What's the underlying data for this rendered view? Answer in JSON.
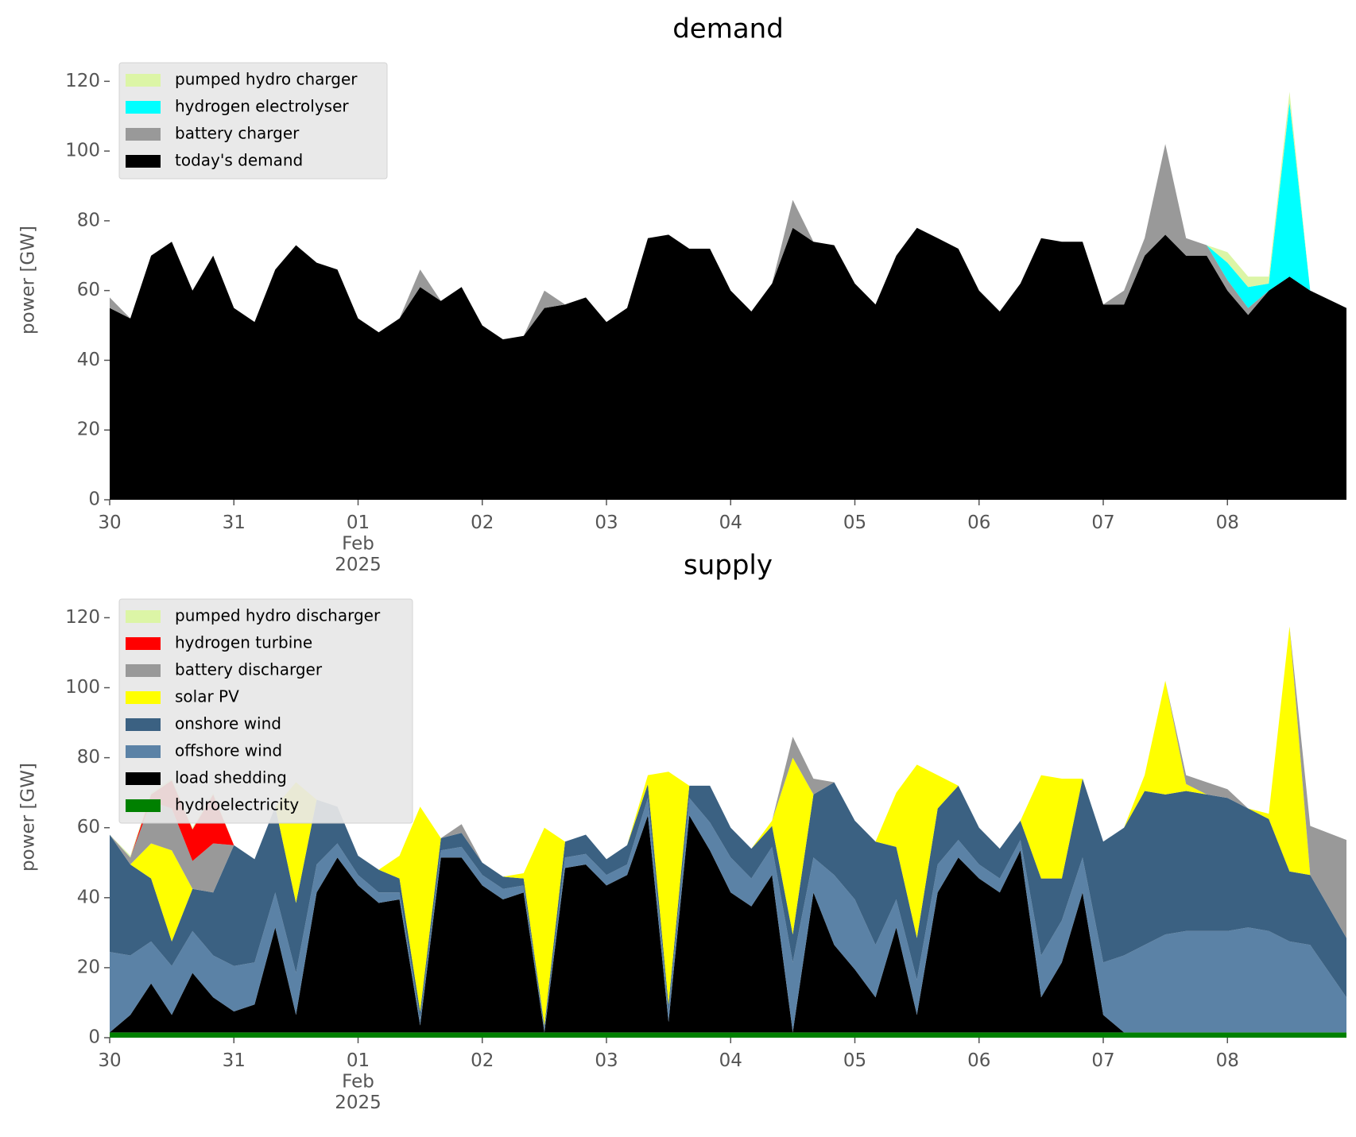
{
  "chart_data": [
    {
      "type": "area",
      "stacked": true,
      "title": "demand",
      "y_label": "power [GW]",
      "legend": "upper left",
      "x": [
        "2025-01-30T00:00",
        "2025-01-30T04:00",
        "2025-01-30T08:00",
        "2025-01-30T12:00",
        "2025-01-30T16:00",
        "2025-01-30T20:00",
        "2025-01-31T00:00",
        "2025-01-31T04:00",
        "2025-01-31T08:00",
        "2025-01-31T12:00",
        "2025-01-31T16:00",
        "2025-01-31T20:00",
        "2025-02-01T00:00",
        "2025-02-01T04:00",
        "2025-02-01T08:00",
        "2025-02-01T12:00",
        "2025-02-01T16:00",
        "2025-02-01T20:00",
        "2025-02-02T00:00",
        "2025-02-02T04:00",
        "2025-02-02T08:00",
        "2025-02-02T12:00",
        "2025-02-02T16:00",
        "2025-02-02T20:00",
        "2025-02-03T00:00",
        "2025-02-03T04:00",
        "2025-02-03T08:00",
        "2025-02-03T12:00",
        "2025-02-03T16:00",
        "2025-02-03T20:00",
        "2025-02-04T00:00",
        "2025-02-04T04:00",
        "2025-02-04T08:00",
        "2025-02-04T12:00",
        "2025-02-04T16:00",
        "2025-02-04T20:00",
        "2025-02-05T00:00",
        "2025-02-05T04:00",
        "2025-02-05T08:00",
        "2025-02-05T12:00",
        "2025-02-05T16:00",
        "2025-02-05T20:00",
        "2025-02-06T00:00",
        "2025-02-06T04:00",
        "2025-02-06T08:00",
        "2025-02-06T12:00",
        "2025-02-06T16:00",
        "2025-02-06T20:00",
        "2025-02-07T00:00",
        "2025-02-07T04:00",
        "2025-02-07T08:00",
        "2025-02-07T12:00",
        "2025-02-07T16:00",
        "2025-02-07T20:00",
        "2025-02-08T00:00",
        "2025-02-08T04:00",
        "2025-02-08T08:00",
        "2025-02-08T12:00",
        "2025-02-08T16:00",
        "2025-02-08T23:00"
      ],
      "series": [
        {
          "name": "today's demand",
          "color": "#000000",
          "values": [
            55,
            52,
            70,
            74,
            60,
            70,
            55,
            51,
            66,
            73,
            68,
            66,
            52,
            48,
            52,
            61,
            57,
            61,
            50,
            46,
            47,
            55,
            56,
            58,
            51,
            55,
            75,
            76,
            72,
            72,
            60,
            54,
            62,
            78,
            74,
            73,
            62,
            56,
            70,
            78,
            75,
            72,
            60,
            54,
            62,
            75,
            74,
            74,
            56,
            56,
            70,
            76,
            70,
            70,
            60,
            53,
            60,
            64,
            60,
            55
          ]
        },
        {
          "name": "battery charger",
          "color": "#999999",
          "values": [
            3,
            0,
            0,
            0,
            0,
            0,
            0,
            0,
            0,
            0,
            0,
            0,
            0,
            0,
            0,
            5,
            0,
            0,
            0,
            0,
            0,
            5,
            0,
            0,
            0,
            0,
            0,
            0,
            0,
            0,
            0,
            0,
            0,
            8,
            0,
            0,
            0,
            0,
            0,
            0,
            0,
            0,
            0,
            0,
            0,
            0,
            0,
            0,
            0,
            4,
            5,
            26,
            5,
            3,
            3,
            2,
            0,
            0,
            0,
            0
          ]
        },
        {
          "name": "hydrogen electrolyser",
          "color": "#00ffff",
          "values": [
            0,
            0,
            0,
            0,
            0,
            0,
            0,
            0,
            0,
            0,
            0,
            0,
            0,
            0,
            0,
            0,
            0,
            0,
            0,
            0,
            0,
            0,
            0,
            0,
            0,
            0,
            0,
            0,
            0,
            0,
            0,
            0,
            0,
            0,
            0,
            0,
            0,
            0,
            0,
            0,
            0,
            0,
            0,
            0,
            0,
            0,
            0,
            0,
            0,
            0,
            0,
            0,
            0,
            0,
            5,
            6,
            2,
            50,
            0,
            0
          ]
        },
        {
          "name": "pumped hydro charger",
          "color": "#dcf5a6",
          "values": [
            0,
            0,
            0,
            0,
            0,
            0,
            0,
            0,
            0,
            0,
            0,
            0,
            0,
            0,
            0,
            0,
            0,
            0,
            0,
            0,
            0,
            0,
            0,
            0,
            0,
            0,
            0,
            0,
            0,
            0,
            0,
            0,
            0,
            0,
            0,
            0,
            0,
            0,
            0,
            0,
            0,
            0,
            0,
            0,
            0,
            0,
            0,
            0,
            0,
            0,
            0,
            0,
            0,
            0,
            3,
            3,
            2,
            3,
            0,
            0
          ]
        }
      ],
      "xlim": [
        "2025-01-30T00:00",
        "2025-02-08T23:00"
      ],
      "xticks": [
        {
          "value": "2025-01-30T00:00",
          "label": "30"
        },
        {
          "value": "2025-01-31T00:00",
          "label": "31"
        },
        {
          "value": "2025-02-01T00:00",
          "label": "01\nFeb\n2025"
        },
        {
          "value": "2025-02-02T00:00",
          "label": "02"
        },
        {
          "value": "2025-02-03T00:00",
          "label": "03"
        },
        {
          "value": "2025-02-04T00:00",
          "label": "04"
        },
        {
          "value": "2025-02-05T00:00",
          "label": "05"
        },
        {
          "value": "2025-02-06T00:00",
          "label": "06"
        },
        {
          "value": "2025-02-07T00:00",
          "label": "07"
        },
        {
          "value": "2025-02-08T00:00",
          "label": "08"
        }
      ],
      "ylim": [
        0,
        126
      ],
      "yticks": [
        0,
        20,
        40,
        60,
        80,
        100,
        120
      ],
      "grid": false
    },
    {
      "type": "area",
      "stacked": true,
      "title": "supply",
      "y_label": "power [GW]",
      "legend": "upper left",
      "x": [
        "2025-01-30T00:00",
        "2025-01-30T04:00",
        "2025-01-30T08:00",
        "2025-01-30T12:00",
        "2025-01-30T16:00",
        "2025-01-30T20:00",
        "2025-01-31T00:00",
        "2025-01-31T04:00",
        "2025-01-31T08:00",
        "2025-01-31T12:00",
        "2025-01-31T16:00",
        "2025-01-31T20:00",
        "2025-02-01T00:00",
        "2025-02-01T04:00",
        "2025-02-01T08:00",
        "2025-02-01T12:00",
        "2025-02-01T16:00",
        "2025-02-01T20:00",
        "2025-02-02T00:00",
        "2025-02-02T04:00",
        "2025-02-02T08:00",
        "2025-02-02T12:00",
        "2025-02-02T16:00",
        "2025-02-02T20:00",
        "2025-02-03T00:00",
        "2025-02-03T04:00",
        "2025-02-03T08:00",
        "2025-02-03T12:00",
        "2025-02-03T16:00",
        "2025-02-03T20:00",
        "2025-02-04T00:00",
        "2025-02-04T04:00",
        "2025-02-04T08:00",
        "2025-02-04T12:00",
        "2025-02-04T16:00",
        "2025-02-04T20:00",
        "2025-02-05T00:00",
        "2025-02-05T04:00",
        "2025-02-05T08:00",
        "2025-02-05T12:00",
        "2025-02-05T16:00",
        "2025-02-05T20:00",
        "2025-02-06T00:00",
        "2025-02-06T04:00",
        "2025-02-06T08:00",
        "2025-02-06T12:00",
        "2025-02-06T16:00",
        "2025-02-06T20:00",
        "2025-02-07T00:00",
        "2025-02-07T04:00",
        "2025-02-07T08:00",
        "2025-02-07T12:00",
        "2025-02-07T16:00",
        "2025-02-07T20:00",
        "2025-02-08T00:00",
        "2025-02-08T04:00",
        "2025-02-08T08:00",
        "2025-02-08T12:00",
        "2025-02-08T16:00",
        "2025-02-08T23:00"
      ],
      "series": [
        {
          "name": "hydroelectricity",
          "color": "#008000",
          "values": [
            1.5,
            1.5,
            1.5,
            1.5,
            1.5,
            1.5,
            1.5,
            1.5,
            1.5,
            1.5,
            1.5,
            1.5,
            1.5,
            1.5,
            1.5,
            1.5,
            1.5,
            1.5,
            1.5,
            1.5,
            1.5,
            1.5,
            1.5,
            1.5,
            1.5,
            1.5,
            1.5,
            1.5,
            1.5,
            1.5,
            1.5,
            1.5,
            1.5,
            1.5,
            1.5,
            1.5,
            1.5,
            1.5,
            1.5,
            1.5,
            1.5,
            1.5,
            1.5,
            1.5,
            1.5,
            1.5,
            1.5,
            1.5,
            1.5,
            1.5,
            1.5,
            1.5,
            1.5,
            1.5,
            1.5,
            1.5,
            1.5,
            1.5,
            1.5,
            1.5
          ]
        },
        {
          "name": "load shedding",
          "color": "#000000",
          "values": [
            0,
            5,
            14,
            5,
            17,
            10,
            6,
            8,
            30,
            5,
            40,
            50,
            42,
            37,
            38,
            2,
            50,
            50,
            42,
            38,
            40,
            0,
            47,
            48,
            42,
            45,
            62,
            3,
            62,
            52,
            40,
            36,
            45,
            0,
            40,
            25,
            18,
            10,
            30,
            5,
            40,
            50,
            44,
            40,
            52,
            10,
            20,
            40,
            5,
            0,
            0,
            0,
            0,
            0,
            0,
            0,
            0,
            0,
            0,
            0
          ]
        },
        {
          "name": "offshore wind",
          "color": "#5b82a6",
          "values": [
            23,
            17,
            12,
            14,
            12,
            12,
            13,
            12,
            10,
            12,
            8,
            4,
            3,
            3,
            2,
            2,
            2,
            3,
            3,
            3,
            2,
            1,
            3,
            3,
            3,
            3,
            5,
            3,
            5,
            8,
            10,
            8,
            8,
            20,
            10,
            20,
            20,
            15,
            8,
            10,
            8,
            5,
            4,
            4,
            3,
            12,
            12,
            10,
            15,
            22,
            25,
            28,
            29,
            29,
            29,
            30,
            29,
            26,
            25,
            10
          ]
        },
        {
          "name": "onshore wind",
          "color": "#3b6182",
          "values": [
            33.5,
            26,
            18,
            7,
            12,
            18,
            34.5,
            29.5,
            24.5,
            20,
            18.5,
            10.5,
            5.5,
            6.5,
            4,
            2,
            3.5,
            4,
            3.5,
            3.5,
            2,
            1,
            4.5,
            5.5,
            4.5,
            5.5,
            4,
            2,
            3.5,
            10.5,
            8.5,
            8.5,
            6,
            8,
            18,
            26.5,
            22.5,
            29.5,
            15,
            12,
            16,
            15.5,
            10.5,
            8.5,
            5.5,
            22,
            12,
            22.5,
            34.5,
            36.5,
            44,
            40,
            40,
            39,
            38,
            34,
            32,
            20,
            20,
            17
          ]
        },
        {
          "name": "solar PV",
          "color": "#ffff00",
          "values": [
            0,
            0,
            10,
            26,
            0,
            0,
            0,
            0,
            0,
            34.5,
            0,
            0,
            0,
            0,
            6.5,
            58.5,
            0,
            0,
            0,
            0,
            1.5,
            56.5,
            0,
            0,
            0,
            0,
            2.5,
            66.5,
            0,
            0,
            0,
            0,
            1.5,
            50.5,
            0,
            0,
            0,
            0,
            15.5,
            49.5,
            9.5,
            0,
            0,
            0,
            0,
            29.5,
            28.5,
            0,
            0,
            0,
            4.5,
            32.5,
            2,
            0,
            0,
            0,
            1.5,
            70,
            0,
            0
          ]
        },
        {
          "name": "battery discharger",
          "color": "#999999",
          "values": [
            0,
            2,
            12,
            12,
            8,
            14,
            0,
            0,
            0,
            0,
            0,
            0,
            0,
            0,
            0,
            0,
            0,
            2.5,
            0,
            0,
            0,
            0,
            0,
            0,
            0,
            0,
            0,
            0,
            0,
            0,
            0,
            0,
            0,
            6,
            4.5,
            0,
            0,
            0,
            0,
            0,
            0,
            0,
            0,
            0,
            0,
            0,
            0,
            0,
            0,
            0,
            0,
            0,
            2.5,
            3.5,
            2.5,
            0,
            0,
            0,
            14,
            28
          ]
        },
        {
          "name": "hydrogen turbine",
          "color": "#ff0000",
          "values": [
            0,
            0,
            2,
            8,
            9,
            14,
            0,
            0,
            0,
            0,
            0,
            0,
            0,
            0,
            0,
            0,
            0,
            0,
            0,
            0,
            0,
            0,
            0,
            0,
            0,
            0,
            0,
            0,
            0,
            0,
            0,
            0,
            0,
            0,
            0,
            0,
            0,
            0,
            0,
            0,
            0,
            0,
            0,
            0,
            0,
            0,
            0,
            0,
            0,
            0,
            0,
            0,
            0,
            0,
            0,
            0,
            0,
            0,
            0,
            0
          ]
        },
        {
          "name": "pumped hydro discharger",
          "color": "#dcf5a6",
          "values": [
            0,
            0.5,
            0.5,
            0.5,
            0.5,
            0.5,
            0,
            0,
            0,
            0,
            0,
            0,
            0,
            0,
            0,
            0,
            0,
            0,
            0,
            0,
            0,
            0,
            0,
            0,
            0,
            0,
            0,
            0,
            0,
            0,
            0,
            0,
            0,
            0,
            0,
            0,
            0,
            0,
            0,
            0,
            0,
            0,
            0,
            0,
            0,
            0,
            0,
            0,
            0,
            0,
            0,
            0,
            0,
            0,
            0,
            0,
            0,
            0,
            0,
            0
          ]
        }
      ],
      "xlim": [
        "2025-01-30T00:00",
        "2025-02-08T23:00"
      ],
      "xticks": [
        {
          "value": "2025-01-30T00:00",
          "label": "30"
        },
        {
          "value": "2025-01-31T00:00",
          "label": "31"
        },
        {
          "value": "2025-02-01T00:00",
          "label": "01\nFeb\n2025"
        },
        {
          "value": "2025-02-02T00:00",
          "label": "02"
        },
        {
          "value": "2025-02-03T00:00",
          "label": "03"
        },
        {
          "value": "2025-02-04T00:00",
          "label": "04"
        },
        {
          "value": "2025-02-05T00:00",
          "label": "05"
        },
        {
          "value": "2025-02-06T00:00",
          "label": "06"
        },
        {
          "value": "2025-02-07T00:00",
          "label": "07"
        },
        {
          "value": "2025-02-08T00:00",
          "label": "08"
        }
      ],
      "ylim": [
        0,
        126
      ],
      "yticks": [
        0,
        20,
        40,
        60,
        80,
        100,
        120
      ],
      "grid": false
    }
  ]
}
